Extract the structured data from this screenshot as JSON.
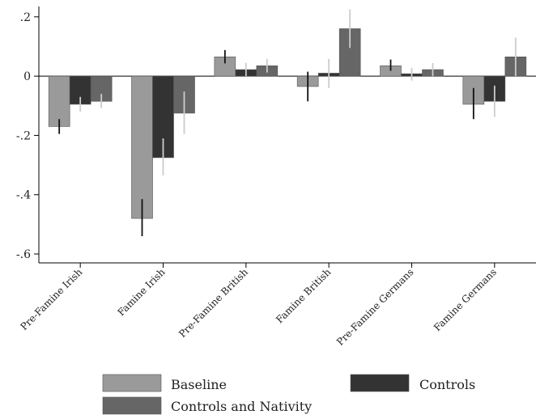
{
  "chart_data": {
    "type": "bar",
    "categories": [
      "Pre-Famine Irish",
      "Famine Irish",
      "Pre-Famine British",
      "Famine British",
      "Pre-Famine Germans",
      "Famine Germans"
    ],
    "series": [
      {
        "name": "Baseline",
        "color": "#9a9a9a",
        "values": [
          -0.17,
          -0.48,
          0.065,
          -0.035,
          0.035,
          -0.095
        ],
        "ci_low": [
          -0.195,
          -0.54,
          0.043,
          -0.085,
          0.018,
          -0.145
        ],
        "ci_high": [
          -0.145,
          -0.415,
          0.088,
          0.015,
          0.056,
          -0.04
        ]
      },
      {
        "name": "Controls",
        "color": "#333333",
        "values": [
          -0.095,
          -0.275,
          0.022,
          0.01,
          0.008,
          -0.085
        ],
        "ci_low": [
          -0.12,
          -0.335,
          0.0,
          -0.04,
          -0.015,
          -0.138
        ],
        "ci_high": [
          -0.07,
          -0.21,
          0.045,
          0.058,
          0.028,
          -0.032
        ]
      },
      {
        "name": "Controls and Nativity",
        "color": "#666666",
        "values": [
          -0.085,
          -0.125,
          0.035,
          0.16,
          0.022,
          0.065
        ],
        "ci_low": [
          -0.108,
          -0.195,
          0.012,
          0.095,
          0.0,
          0.0
        ],
        "ci_high": [
          -0.06,
          -0.052,
          0.058,
          0.225,
          0.044,
          0.13
        ]
      }
    ],
    "yticks": [
      0.2,
      0,
      -0.2,
      -0.4,
      -0.6
    ],
    "ytick_labels": [
      ".2",
      "0",
      "-.2",
      "-.4",
      "-.6"
    ],
    "ylim": [
      -0.63,
      0.235
    ],
    "legend": [
      "Baseline",
      "Controls",
      "Controls and Nativity"
    ],
    "title": "",
    "xlabel": "",
    "ylabel": ""
  }
}
